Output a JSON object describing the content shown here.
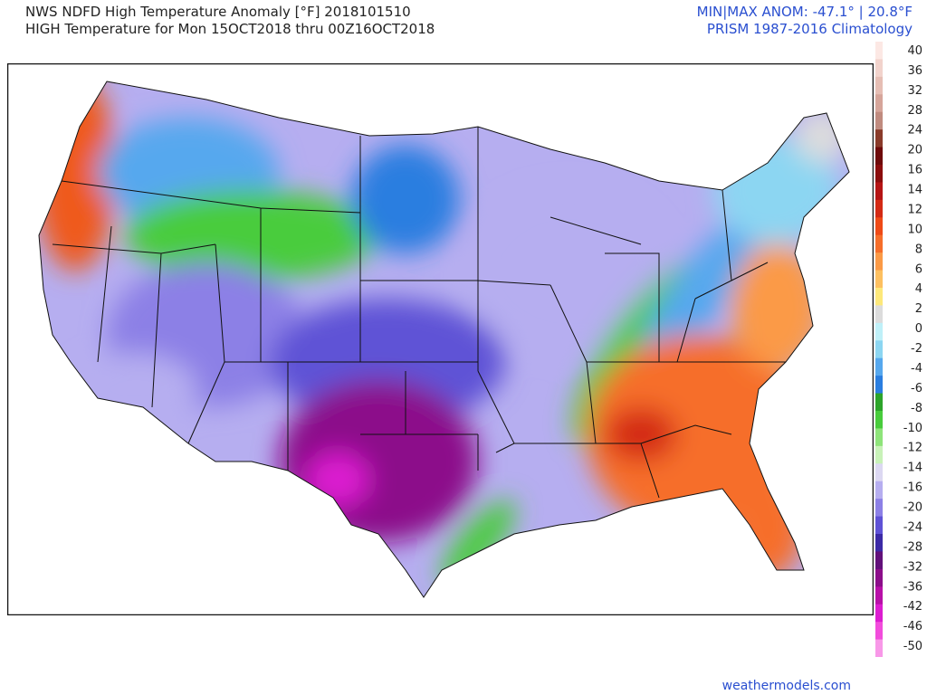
{
  "title": {
    "line1": "NWS NDFD High Temperature Anomaly [°F] 2018101510",
    "line2": "HIGH Temperature for Mon 15OCT2018 thru 00Z16OCT2018"
  },
  "header_right": {
    "line1": "MIN|MAX ANOM: -47.1° | 20.8°F",
    "line2": "PRISM 1987-2016 Climatology"
  },
  "credit": "weathermodels.com",
  "colorbar": {
    "labels": [
      "40",
      "36",
      "32",
      "28",
      "24",
      "20",
      "16",
      "14",
      "12",
      "10",
      "8",
      "6",
      "4",
      "2",
      "0",
      "-2",
      "-4",
      "-6",
      "-8",
      "-10",
      "-12",
      "-14",
      "-16",
      "-20",
      "-24",
      "-28",
      "-32",
      "-36",
      "-42",
      "-46",
      "-50"
    ],
    "colors": [
      "#fce8e4",
      "#f2d3cc",
      "#e6beb4",
      "#d6a59a",
      "#c08b7f",
      "#8a3b2a",
      "#6e0a0a",
      "#8b0d0d",
      "#b51414",
      "#d42a14",
      "#ef4a16",
      "#f66e2a",
      "#fb9a46",
      "#fdc060",
      "#fde87a",
      "#dcdcdc",
      "#bff0f8",
      "#8cd6f2",
      "#56a8ee",
      "#2a7ee0",
      "#2ca42a",
      "#48cc3c",
      "#8ee47a",
      "#c8f2b8",
      "#dcd8f2",
      "#b6aef0",
      "#8c80e6",
      "#5f52d6",
      "#3c2aa6",
      "#62107a",
      "#8c0e8a",
      "#b810a8",
      "#dc1cd0",
      "#f24cdc",
      "#f898e8"
    ]
  },
  "map_regions": [
    {
      "name": "pacific-coast-north",
      "color": "#ef5a1e"
    },
    {
      "name": "northwest-interior",
      "color": "#56a8ee"
    },
    {
      "name": "northern-rockies",
      "color": "#48cc3c"
    },
    {
      "name": "great-basin",
      "color": "#8c80e6"
    },
    {
      "name": "central-plains",
      "color": "#5f52d6"
    },
    {
      "name": "texas-oklahoma",
      "color": "#8c0e8a"
    },
    {
      "name": "great-lakes",
      "color": "#b6aef0"
    },
    {
      "name": "ohio-valley-gradient",
      "color": "#48cc3c"
    },
    {
      "name": "southeast",
      "color": "#f66e2a"
    },
    {
      "name": "northeast",
      "color": "#8cd6f2"
    }
  ]
}
